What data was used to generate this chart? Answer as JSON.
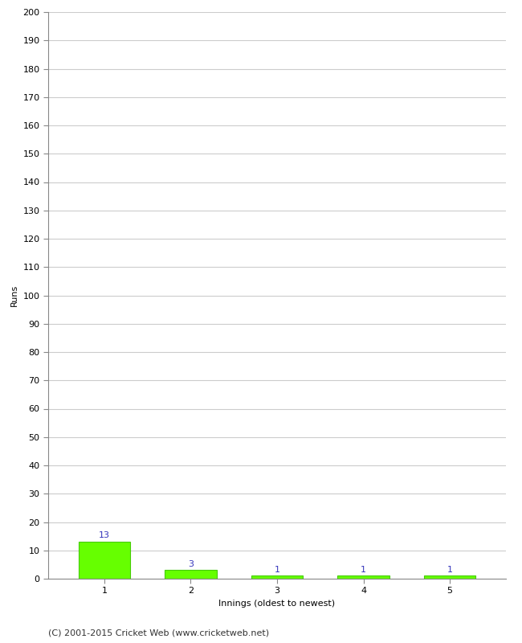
{
  "categories": [
    "1",
    "2",
    "3",
    "4",
    "5"
  ],
  "values": [
    13,
    3,
    1,
    1,
    1
  ],
  "bar_color": "#66ff00",
  "bar_edge_color": "#44cc00",
  "ylabel": "Runs",
  "xlabel": "Innings (oldest to newest)",
  "ylim": [
    0,
    200
  ],
  "yticks": [
    0,
    10,
    20,
    30,
    40,
    50,
    60,
    70,
    80,
    90,
    100,
    110,
    120,
    130,
    140,
    150,
    160,
    170,
    180,
    190,
    200
  ],
  "label_color": "#3333bb",
  "label_fontsize": 8,
  "xlabel_fontsize": 8,
  "ylabel_fontsize": 8,
  "tick_fontsize": 8,
  "footer_text": "(C) 2001-2015 Cricket Web (www.cricketweb.net)",
  "footer_fontsize": 8,
  "background_color": "#ffffff",
  "grid_color": "#cccccc",
  "bar_width": 0.6
}
